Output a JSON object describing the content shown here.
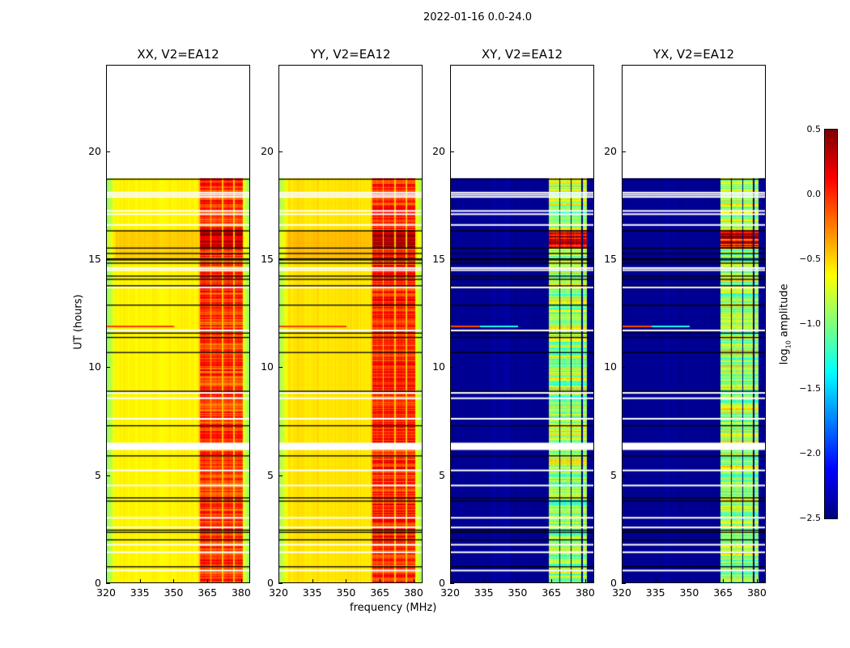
{
  "chart_data": {
    "type": "heatmap",
    "title": "2022-01-16 0.0-24.0",
    "xlabel": "frequency (MHz)",
    "ylabel": "UT (hours)",
    "xlim": [
      320,
      384
    ],
    "ylim": [
      0,
      24
    ],
    "data_time_range": [
      0,
      18.8
    ],
    "xticks": [
      "320",
      "335",
      "350",
      "365",
      "380"
    ],
    "xtick_values": [
      320,
      335,
      350,
      365,
      380
    ],
    "yticks": [
      "0",
      "5",
      "10",
      "15",
      "20"
    ],
    "ytick_values": [
      0,
      5,
      10,
      15,
      20
    ],
    "colorbar": {
      "label": "log10 amplitude",
      "label_main": "log",
      "label_sub": "10",
      "label_rest": " amplitude",
      "colormap": "jet",
      "range": [
        -2.5,
        0.5
      ],
      "ticks": [
        "0.5",
        "0.0",
        "−0.5",
        "−1.0",
        "−1.5",
        "−2.0",
        "−2.5"
      ],
      "tick_values": [
        0.5,
        0.0,
        -0.5,
        -1.0,
        -1.5,
        -2.0,
        -2.5
      ]
    },
    "panels": [
      {
        "title": "XX, V2=EA12",
        "kind": "parallel",
        "base_level": -0.6,
        "edge_level": -0.95,
        "band_level": -0.05
      },
      {
        "title": "YY, V2=EA12",
        "kind": "parallel",
        "base_level": -0.55,
        "edge_level": -0.9,
        "band_level": 0.0
      },
      {
        "title": "XY, V2=EA12",
        "kind": "cross",
        "base_level": -2.45,
        "edge_level": -2.45,
        "band_level": -0.9
      },
      {
        "title": "YX, V2=EA12",
        "kind": "cross",
        "base_level": -2.45,
        "edge_level": -2.45,
        "band_level": -0.85
      }
    ],
    "band_MHz": [
      361,
      381
    ],
    "flagged_hours_white": [
      0.55,
      1.4,
      1.75,
      2.55,
      3.0,
      4.5,
      5.2,
      6.3,
      6.45,
      7.6,
      8.55,
      8.8,
      11.7,
      13.7,
      14.5,
      14.6,
      16.6,
      17.1,
      17.25,
      17.9,
      18.0,
      18.1
    ],
    "flagged_hours_black": [
      0.75,
      2.0,
      2.35,
      2.45,
      3.8,
      3.95,
      5.9,
      7.3,
      8.9,
      10.7,
      11.4,
      11.6,
      12.9,
      13.8,
      14.1,
      14.25,
      14.85,
      15.0,
      15.05,
      15.3,
      15.55,
      16.35,
      18.75
    ]
  }
}
